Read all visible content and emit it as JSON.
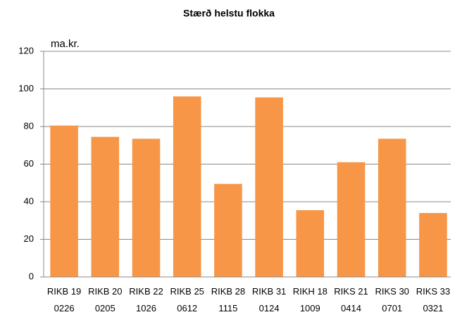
{
  "chart_data": {
    "type": "bar",
    "title": "Stærð helstu flokka",
    "y_label": "ma.kr.",
    "categories": [
      [
        "RIKB 19",
        "0226"
      ],
      [
        "RIKB 20",
        "0205"
      ],
      [
        "RIKB 22",
        "1026"
      ],
      [
        "RIKB 25",
        "0612"
      ],
      [
        "RIKB 28",
        "1115"
      ],
      [
        "RIKB 31",
        "0124"
      ],
      [
        "RIKH 18",
        "1009"
      ],
      [
        "RIKS 21",
        "0414"
      ],
      [
        "RIKS 30",
        "0701"
      ],
      [
        "RIKS 33",
        "0321"
      ]
    ],
    "values": [
      80.5,
      74.5,
      73.5,
      96,
      49.5,
      95.5,
      35.5,
      61,
      73.5,
      34
    ],
    "color": "#f79646",
    "ylim": [
      0,
      120
    ],
    "yticks": [
      0,
      20,
      40,
      60,
      80,
      100,
      120
    ],
    "grid": true
  }
}
